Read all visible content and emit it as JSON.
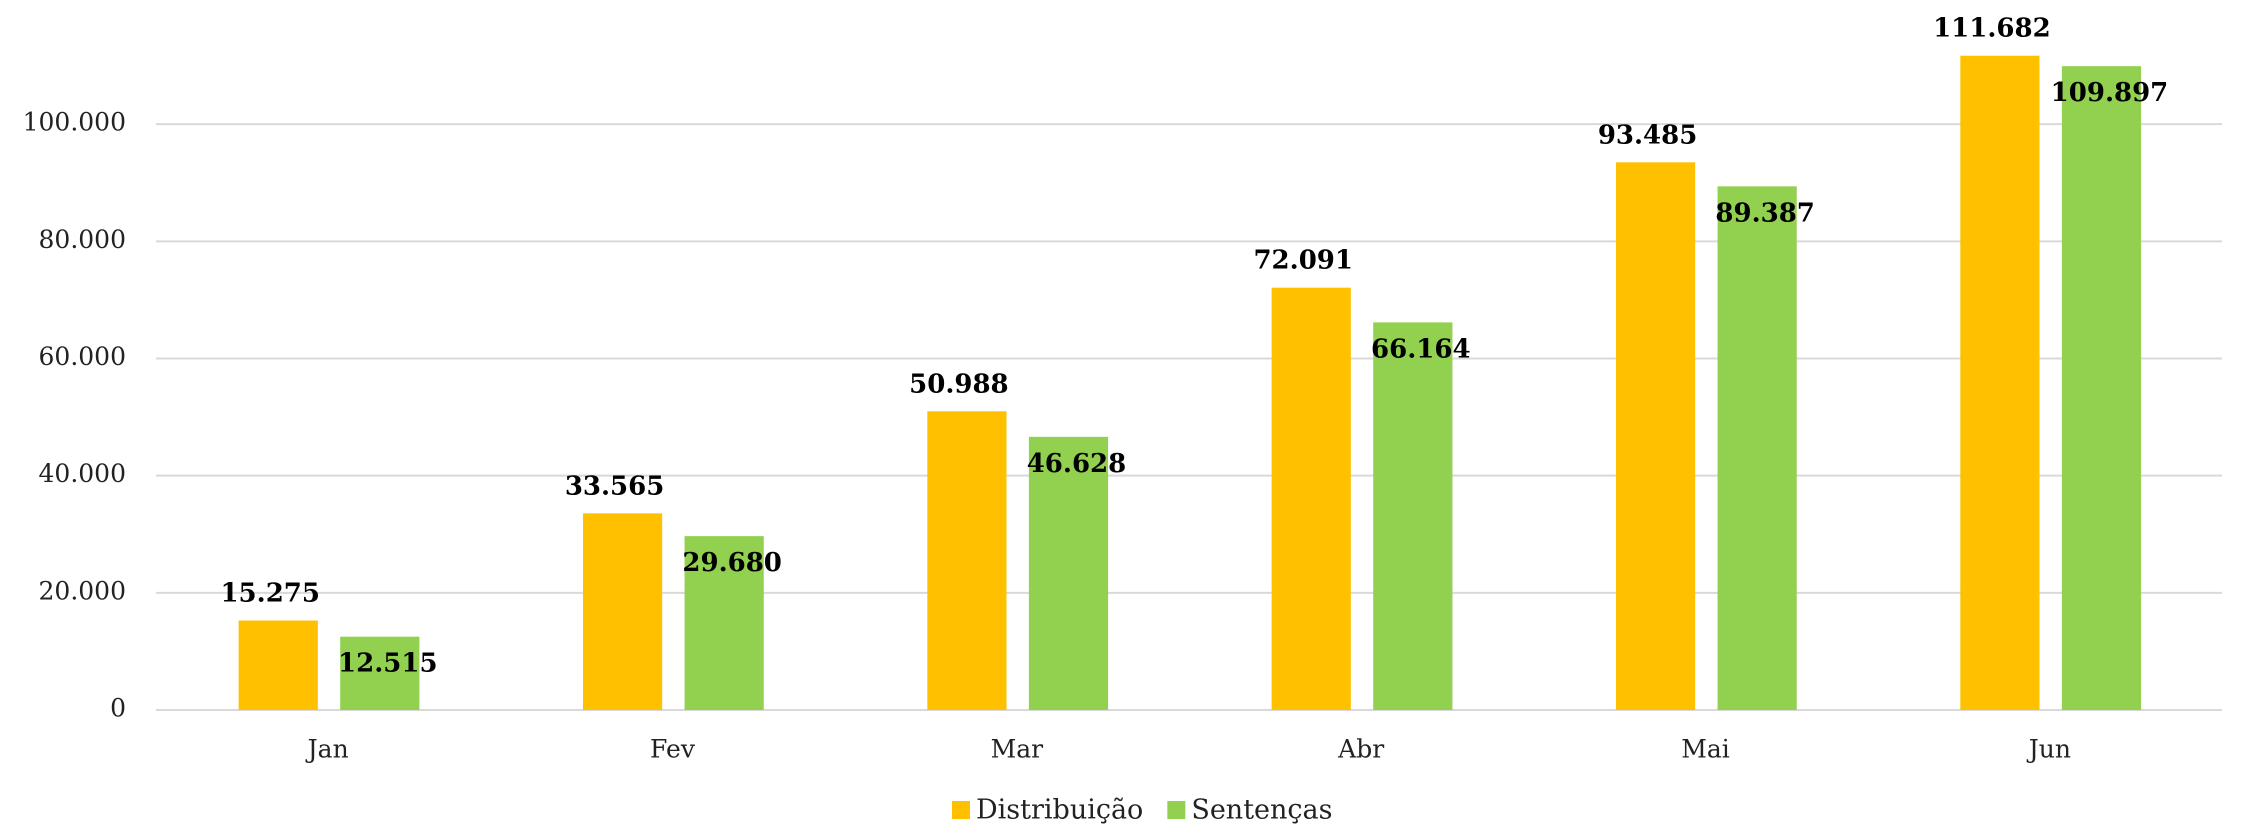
{
  "chart_data": {
    "type": "bar",
    "categories": [
      "Jan",
      "Fev",
      "Mar",
      "Abr",
      "Mai",
      "Jun"
    ],
    "series": [
      {
        "name": "Distribuição",
        "color": "#ffc000",
        "values": [
          15275,
          33565,
          50988,
          72091,
          93485,
          111682
        ],
        "value_labels": [
          "15.275",
          "33.565",
          "50.988",
          "72.091",
          "93.485",
          "111.682"
        ]
      },
      {
        "name": "Sentenças",
        "color": "#92d050",
        "values": [
          12515,
          29680,
          46628,
          66164,
          89387,
          109897
        ],
        "value_labels": [
          "12.515",
          "29.680",
          "46.628",
          "66.164",
          "89.387",
          "109.897"
        ]
      }
    ],
    "ylim": [
      0,
      120000
    ],
    "yticks": [
      0,
      {
        "value": 20000,
        "label": "20.000"
      },
      {
        "value": 40000,
        "label": "40.000"
      },
      {
        "value": 60000,
        "label": "60.000"
      },
      {
        "value": 80000,
        "label": "80.000"
      },
      {
        "value": 100000,
        "label": "100.000"
      }
    ],
    "grid": true,
    "legend": "bottom"
  }
}
